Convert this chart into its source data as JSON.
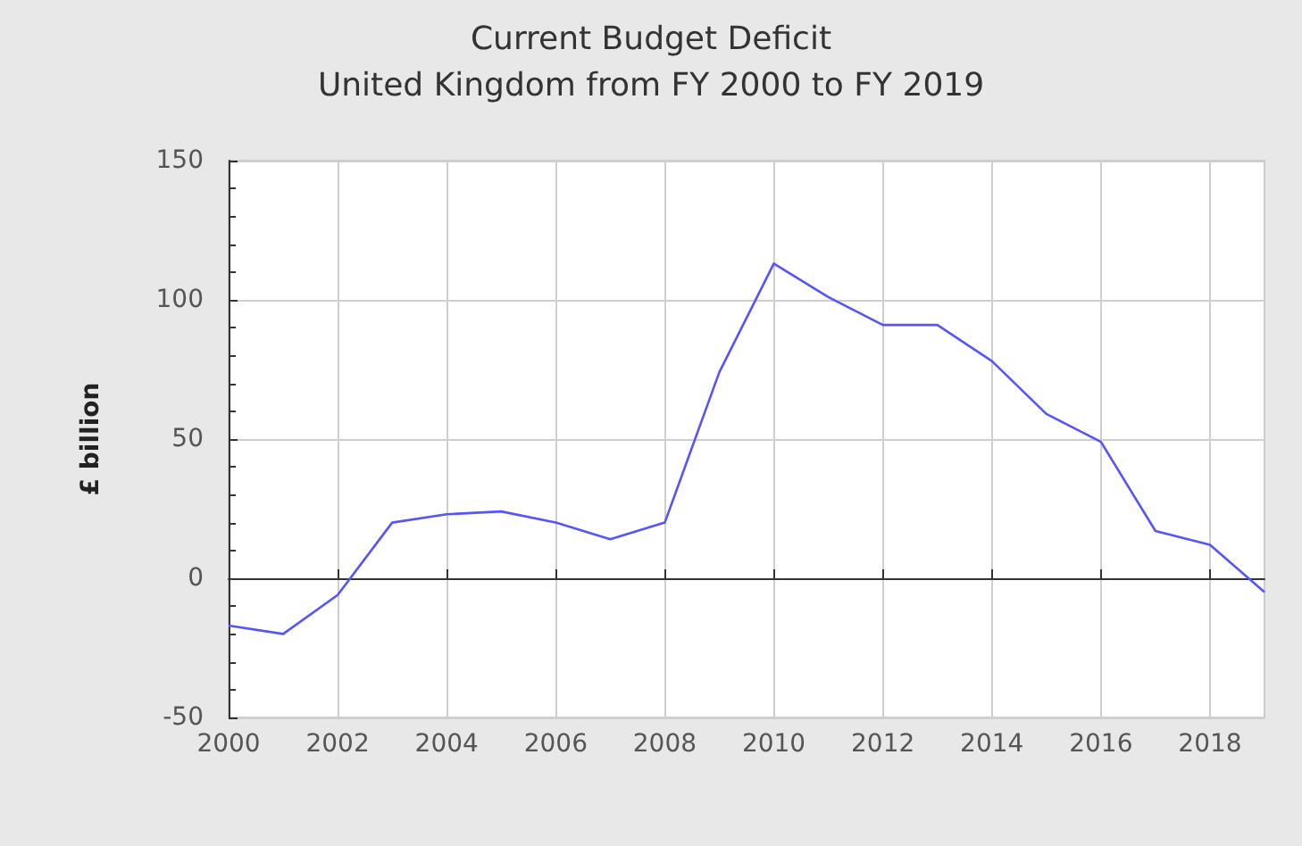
{
  "chart_data": {
    "type": "line",
    "title": "Current Budget Deficit",
    "subtitle": "United Kingdom from FY 2000 to FY 2019",
    "ylabel": "£ billion",
    "x": [
      2000,
      2001,
      2002,
      2003,
      2004,
      2005,
      2006,
      2007,
      2008,
      2009,
      2010,
      2011,
      2012,
      2013,
      2014,
      2015,
      2016,
      2017,
      2018,
      2019
    ],
    "series": [
      {
        "color": "#5555ff",
        "values": [
          -17,
          -20,
          -6,
          20,
          23,
          24,
          20,
          14,
          20,
          74,
          113,
          101,
          91,
          91,
          78,
          59,
          49,
          17,
          12,
          -5
        ]
      }
    ],
    "xlim": [
      2000,
      2019
    ],
    "xticks": [
      2000,
      2002,
      2004,
      2006,
      2008,
      2010,
      2012,
      2014,
      2016,
      2018
    ],
    "ylim": [
      -50,
      150
    ],
    "yticks": [
      -50,
      0,
      50,
      100,
      150
    ],
    "grid": true,
    "marker": "none",
    "line_style": "solid"
  }
}
